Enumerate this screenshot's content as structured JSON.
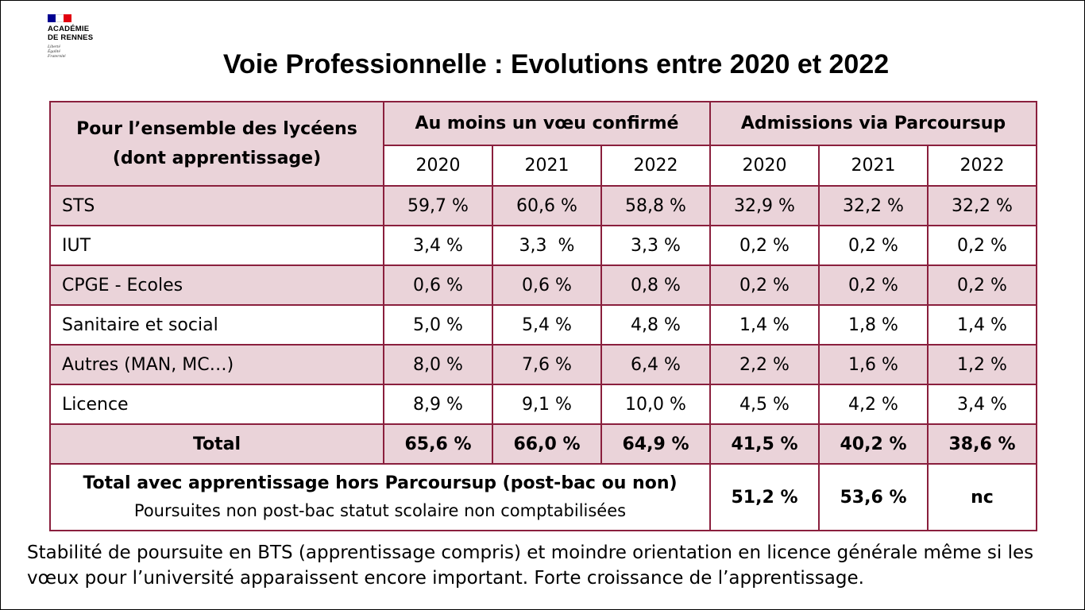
{
  "logo": {
    "name_line1": "ACADÉMIE",
    "name_line2": "DE RENNES",
    "motto": [
      "Liberté",
      "Égalité",
      "Fraternité"
    ]
  },
  "title": "Voie Professionnelle : Evolutions entre 2020 et 2022",
  "table": {
    "corner": [
      "Pour l’ensemble des lycéens",
      "(dont apprentissage)"
    ],
    "group1": "Au moins un vœu confirmé",
    "group2": "Admissions via Parcoursup",
    "years": [
      "2020",
      "2021",
      "2022",
      "2020",
      "2021",
      "2022"
    ],
    "rows": [
      {
        "label": "STS",
        "values": [
          "59,7 %",
          "60,6 %",
          "58,8 %",
          "32,9 %",
          "32,2 %",
          "32,2 %"
        ]
      },
      {
        "label": "IUT",
        "values": [
          "3,4 %",
          "3,3  %",
          "3,3 %",
          "0,2 %",
          "0,2 %",
          "0,2 %"
        ]
      },
      {
        "label": "CPGE - Ecoles",
        "values": [
          "0,6 %",
          "0,6 %",
          "0,8 %",
          "0,2 %",
          "0,2 %",
          "0,2 %"
        ]
      },
      {
        "label": "Sanitaire et social",
        "values": [
          "5,0 %",
          "5,4 %",
          "4,8 %",
          "1,4 %",
          "1,8 %",
          "1,4 %"
        ]
      },
      {
        "label": "Autres (MAN, MC…)",
        "values": [
          "8,0 %",
          "7,6 %",
          "6,4 %",
          "2,2 %",
          "1,6 %",
          "1,2 %"
        ]
      },
      {
        "label": "Licence",
        "values": [
          "8,9 %",
          "9,1 %",
          "10,0 %",
          "4,5 %",
          "4,2 %",
          "3,4 %"
        ]
      }
    ],
    "total": {
      "label": "Total",
      "values": [
        "65,6 %",
        "66,0 %",
        "64,9 %",
        "41,5 %",
        "40,2 %",
        "38,6 %"
      ]
    },
    "final": {
      "line1": "Total avec apprentissage hors Parcoursup (post-bac ou non)",
      "line2": "Poursuites non post-bac statut scolaire non comptabilisées",
      "values": [
        "51,2 %",
        "53,6 %",
        "nc"
      ]
    }
  },
  "note": "Stabilité de poursuite en BTS (apprentissage compris) et moindre orientation en licence générale même si les vœux pour l’université apparaissent encore important. Forte croissance de l’apprentissage."
}
